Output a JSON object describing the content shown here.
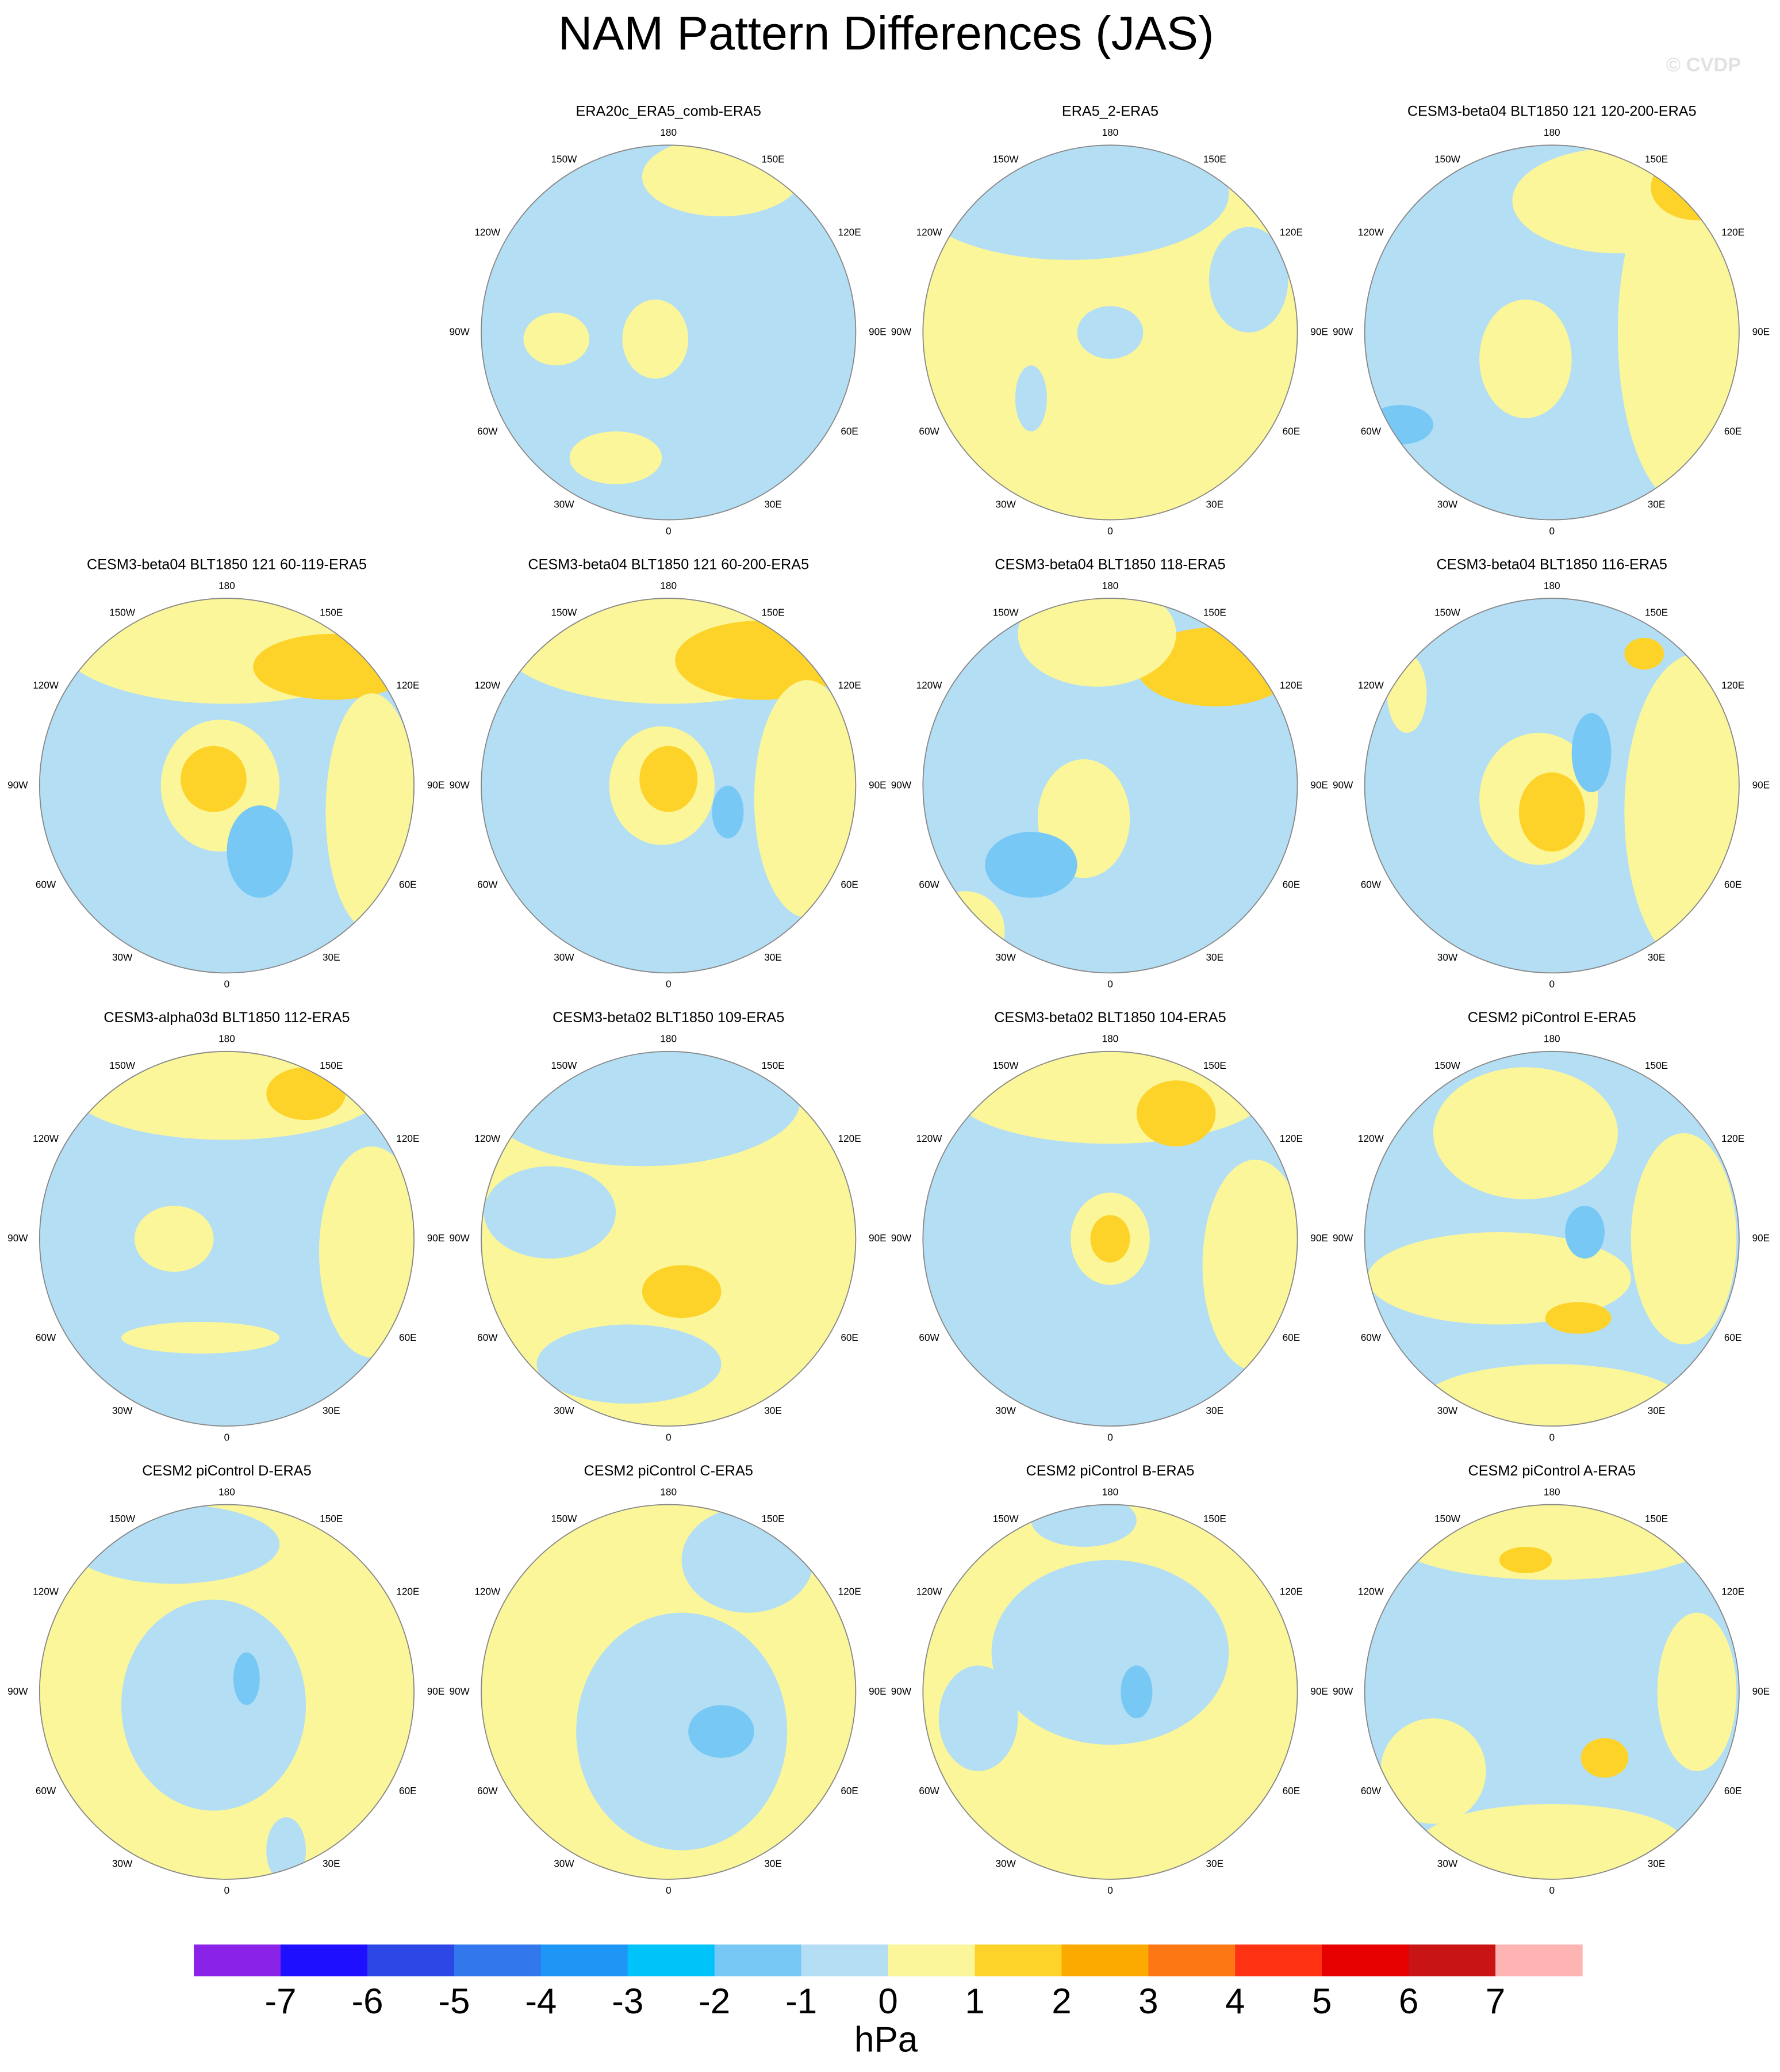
{
  "title": "NAM Pattern Differences (JAS)",
  "watermark": "© CVDP",
  "panels": [
    {
      "title": "ERA20c_ERA5_comb-ERA5"
    },
    {
      "title": "ERA5_2-ERA5"
    },
    {
      "title": "CESM3-beta04 BLT1850 121 120-200-ERA5"
    },
    {
      "title": "CESM3-beta04 BLT1850 121 60-119-ERA5"
    },
    {
      "title": "CESM3-beta04 BLT1850 121 60-200-ERA5"
    },
    {
      "title": "CESM3-beta04 BLT1850 118-ERA5"
    },
    {
      "title": "CESM3-beta04 BLT1850 116-ERA5"
    },
    {
      "title": "CESM3-alpha03d BLT1850 112-ERA5"
    },
    {
      "title": "CESM3-beta02 BLT1850 109-ERA5"
    },
    {
      "title": "CESM3-beta02 BLT1850 104-ERA5"
    },
    {
      "title": "CESM2 piControl E-ERA5"
    },
    {
      "title": "CESM2 piControl D-ERA5"
    },
    {
      "title": "CESM2 piControl C-ERA5"
    },
    {
      "title": "CESM2 piControl B-ERA5"
    },
    {
      "title": "CESM2 piControl A-ERA5"
    }
  ],
  "longitude_labels": [
    "0",
    "30E",
    "60E",
    "90E",
    "120E",
    "150E",
    "180",
    "150W",
    "120W",
    "90W",
    "60W",
    "30W"
  ],
  "colorbar": {
    "levels": [
      -7,
      -6,
      -5,
      -4,
      -3,
      -2,
      -1,
      0,
      1,
      2,
      3,
      4,
      5,
      6,
      7
    ],
    "colors": [
      "#8b22e8",
      "#1e0fff",
      "#2d46e6",
      "#3278ec",
      "#1e96f5",
      "#00c3fa",
      "#78c8f5",
      "#b4def4",
      "#fbf69a",
      "#fdd32a",
      "#fdaa00",
      "#fd7814",
      "#ff3214",
      "#e60000",
      "#c81414",
      "#ffb4b4"
    ],
    "units": "hPa"
  }
}
